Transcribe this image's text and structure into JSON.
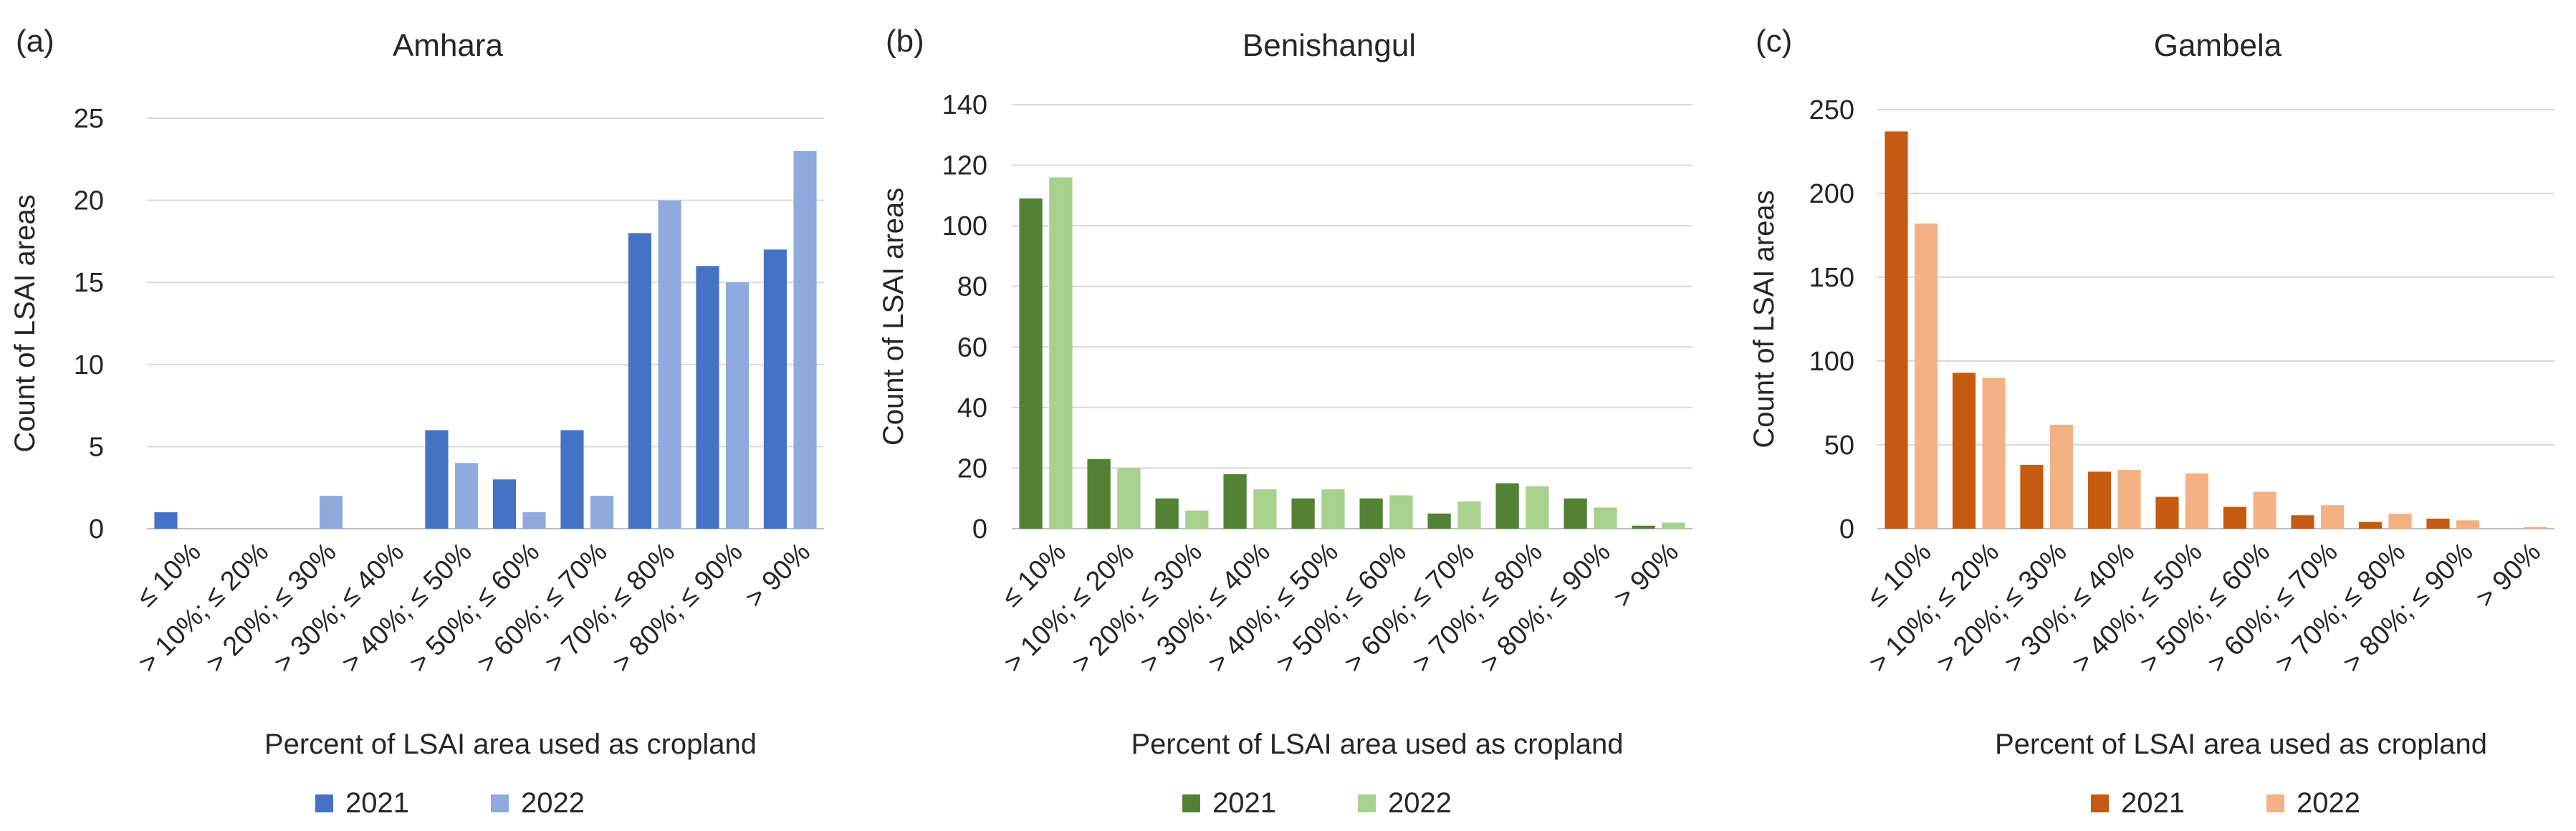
{
  "chart_data": [
    {
      "type": "bar",
      "panel_label": "(a)",
      "title": "Amhara",
      "xlabel": "Percent of LSAI area used as cropland",
      "ylabel": "Count of LSAI areas",
      "ylim": [
        0,
        25
      ],
      "yticks": [
        "0",
        "5",
        "10",
        "15",
        "20",
        "25"
      ],
      "grid": true,
      "legend_position": "bottom",
      "categories": [
        "≤ 10%",
        "> 10%; ≤ 20%",
        "> 20%; ≤ 30%",
        "> 30%; ≤ 40%",
        "> 40%; ≤ 50%",
        "> 50%; ≤ 60%",
        "> 60%; ≤ 70%",
        "> 70%; ≤ 80%",
        "> 80%; ≤ 90%",
        "> 90%"
      ],
      "series": [
        {
          "name": "2021",
          "color": "#4472c4",
          "values": [
            1,
            0,
            0,
            0,
            6,
            3,
            6,
            18,
            16,
            17
          ]
        },
        {
          "name": "2022",
          "color": "#8faadc",
          "values": [
            0,
            0,
            2,
            0,
            4,
            1,
            2,
            20,
            15,
            23
          ]
        }
      ]
    },
    {
      "type": "bar",
      "panel_label": "(b)",
      "title": "Benishangul",
      "xlabel": "Percent of LSAI area used as cropland",
      "ylabel": "Count of LSAI areas",
      "ylim": [
        0,
        140
      ],
      "yticks": [
        "0",
        "20",
        "40",
        "60",
        "80",
        "100",
        "120",
        "140"
      ],
      "grid": true,
      "legend_position": "bottom",
      "categories": [
        "≤ 10%",
        "> 10%; ≤ 20%",
        "> 20%; ≤ 30%",
        "> 30%; ≤ 40%",
        "> 40%; ≤ 50%",
        "> 50%; ≤ 60%",
        "> 60%; ≤ 70%",
        "> 70%; ≤ 80%",
        "> 80%; ≤ 90%",
        "> 90%"
      ],
      "series": [
        {
          "name": "2021",
          "color": "#548235",
          "values": [
            109,
            23,
            10,
            18,
            10,
            10,
            5,
            15,
            10,
            1
          ]
        },
        {
          "name": "2022",
          "color": "#a9d18e",
          "values": [
            116,
            20,
            6,
            13,
            13,
            11,
            9,
            14,
            7,
            2
          ]
        }
      ]
    },
    {
      "type": "bar",
      "panel_label": "(c)",
      "title": "Gambela",
      "xlabel": "Percent of LSAI area used as cropland",
      "ylabel": "Count of LSAI areas",
      "ylim": [
        0,
        250
      ],
      "yticks": [
        "0",
        "50",
        "100",
        "150",
        "200",
        "250"
      ],
      "grid": true,
      "legend_position": "bottom",
      "categories": [
        "≤ 10%",
        "> 10%; ≤ 20%",
        "> 20%; ≤ 30%",
        "> 30%; ≤ 40%",
        "> 40%; ≤ 50%",
        "> 50%; ≤ 60%",
        "> 60%; ≤ 70%",
        "> 70%; ≤ 80%",
        "> 80%; ≤ 90%",
        "> 90%"
      ],
      "series": [
        {
          "name": "2021",
          "color": "#c55a11",
          "values": [
            237,
            93,
            38,
            34,
            19,
            13,
            8,
            4,
            6,
            0
          ]
        },
        {
          "name": "2022",
          "color": "#f4b183",
          "values": [
            182,
            90,
            62,
            35,
            33,
            22,
            14,
            9,
            5,
            1
          ]
        }
      ]
    }
  ]
}
